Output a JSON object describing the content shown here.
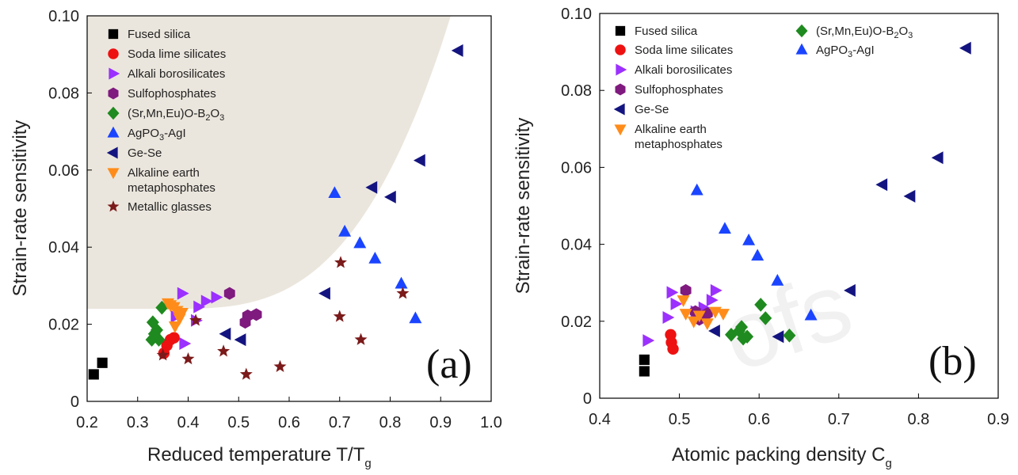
{
  "chart_data": [
    {
      "type": "scatter",
      "panel_label": "(a)",
      "xlabel": "Reduced temperature T/T",
      "xlabel_sub": "g",
      "ylabel": "Strain-rate sensitivity",
      "xlim": [
        0.2,
        1.0
      ],
      "ylim": [
        0,
        0.1
      ],
      "xticks": [
        0.2,
        0.3,
        0.4,
        0.5,
        0.6,
        0.7,
        0.8,
        0.9,
        1.0
      ],
      "yticks": [
        0,
        0.02,
        0.04,
        0.06,
        0.08,
        0.1
      ],
      "xtick_labels": [
        "0.2",
        "0.3",
        "0.4",
        "0.5",
        "0.6",
        "0.7",
        "0.8",
        "0.9",
        "1.0"
      ],
      "ytick_labels": [
        "0",
        "0.02",
        "0.04",
        "0.06",
        "0.08",
        "0.10"
      ],
      "grid": false,
      "shaded_region": true,
      "legend_position": "top-left",
      "series": [
        {
          "name": "Fused silica",
          "marker": "square",
          "color": "#000000",
          "points": [
            [
              0.213,
              0.007
            ],
            [
              0.23,
              0.01
            ]
          ]
        },
        {
          "name": "Soda lime silicates",
          "marker": "circle",
          "color": "#ee1111",
          "points": [
            [
              0.352,
              0.0125
            ],
            [
              0.358,
              0.0145
            ],
            [
              0.365,
              0.016
            ],
            [
              0.372,
              0.0165
            ]
          ]
        },
        {
          "name": "Alkali borosilicates",
          "marker": "triangle-right",
          "color": "#9b30ff",
          "points": [
            [
              0.375,
              0.022
            ],
            [
              0.388,
              0.028
            ],
            [
              0.392,
              0.015
            ],
            [
              0.415,
              0.021
            ],
            [
              0.42,
              0.0245
            ],
            [
              0.435,
              0.026
            ],
            [
              0.455,
              0.027
            ]
          ]
        },
        {
          "name": "Sulfophosphates",
          "marker": "hexagon",
          "color": "#7f1a7f",
          "points": [
            [
              0.482,
              0.028
            ],
            [
              0.513,
              0.0205
            ],
            [
              0.518,
              0.0222
            ],
            [
              0.535,
              0.0225
            ]
          ]
        },
        {
          "name": "(Sr,Mn,Eu)O-B₂O₃",
          "marker": "diamond",
          "color": "#1f8a1f",
          "points": [
            [
              0.328,
              0.016
            ],
            [
              0.333,
              0.0175
            ],
            [
              0.338,
              0.0185
            ],
            [
              0.33,
              0.0205
            ],
            [
              0.342,
              0.016
            ],
            [
              0.348,
              0.0243
            ]
          ]
        },
        {
          "name": "AgPO₃-AgI",
          "marker": "triangle-up",
          "color": "#1a44ff",
          "points": [
            [
              0.69,
              0.054
            ],
            [
              0.71,
              0.044
            ],
            [
              0.74,
              0.041
            ],
            [
              0.77,
              0.037
            ],
            [
              0.822,
              0.0305
            ],
            [
              0.85,
              0.0215
            ]
          ]
        },
        {
          "name": "Ge-Se",
          "marker": "triangle-left",
          "color": "#141480",
          "points": [
            [
              0.475,
              0.0175
            ],
            [
              0.505,
              0.016
            ],
            [
              0.672,
              0.028
            ],
            [
              0.765,
              0.0555
            ],
            [
              0.802,
              0.053
            ],
            [
              0.86,
              0.0625
            ],
            [
              0.935,
              0.091
            ]
          ]
        },
        {
          "name": "Alkaline earth metaphosphates",
          "name_lines": [
            "Alkaline earth",
            "metaphosphates"
          ],
          "marker": "triangle-down",
          "color": "#ff8c1a",
          "points": [
            [
              0.36,
              0.0255
            ],
            [
              0.365,
              0.025
            ],
            [
              0.372,
              0.0245
            ],
            [
              0.378,
              0.0235
            ],
            [
              0.383,
              0.0215
            ],
            [
              0.388,
              0.023
            ],
            [
              0.374,
              0.0195
            ]
          ]
        },
        {
          "name": "Metallic glasses",
          "marker": "star",
          "color": "#7b1a1a",
          "points": [
            [
              0.35,
              0.012
            ],
            [
              0.4,
              0.011
            ],
            [
              0.415,
              0.021
            ],
            [
              0.47,
              0.013
            ],
            [
              0.515,
              0.007
            ],
            [
              0.582,
              0.009
            ],
            [
              0.702,
              0.036
            ],
            [
              0.7,
              0.022
            ],
            [
              0.742,
              0.016
            ],
            [
              0.825,
              0.028
            ]
          ]
        }
      ]
    },
    {
      "type": "scatter",
      "panel_label": "(b)",
      "xlabel": "Atomic packing density C",
      "xlabel_sub": "g",
      "ylabel": "Strain-rate sensitivity",
      "xlim": [
        0.4,
        0.9
      ],
      "ylim": [
        0,
        0.1
      ],
      "xticks": [
        0.4,
        0.5,
        0.6,
        0.7,
        0.8,
        0.9
      ],
      "yticks": [
        0,
        0.02,
        0.04,
        0.06,
        0.08,
        0.1
      ],
      "xtick_labels": [
        "0.4",
        "0.5",
        "0.6",
        "0.7",
        "0.8",
        "0.9"
      ],
      "ytick_labels": [
        "0",
        "0.02",
        "0.04",
        "0.06",
        "0.08",
        "0.10"
      ],
      "grid": false,
      "legend_position": "top",
      "series": [
        {
          "name": "Fused silica",
          "marker": "square",
          "color": "#000000",
          "points": [
            [
              0.456,
              0.007
            ],
            [
              0.456,
              0.01
            ]
          ]
        },
        {
          "name": "Soda lime silicates",
          "marker": "circle",
          "color": "#ee1111",
          "points": [
            [
              0.489,
              0.0165
            ],
            [
              0.49,
              0.0145
            ],
            [
              0.492,
              0.0128
            ]
          ]
        },
        {
          "name": "Alkali borosilicates",
          "marker": "triangle-right",
          "color": "#9b30ff",
          "points": [
            [
              0.46,
              0.015
            ],
            [
              0.485,
              0.021
            ],
            [
              0.49,
              0.0275
            ],
            [
              0.495,
              0.0245
            ],
            [
              0.52,
              0.0225
            ],
            [
              0.53,
              0.0235
            ],
            [
              0.54,
              0.0255
            ],
            [
              0.545,
              0.028
            ]
          ]
        },
        {
          "name": "Sulfophosphates",
          "marker": "hexagon",
          "color": "#7f1a7f",
          "points": [
            [
              0.508,
              0.028
            ],
            [
              0.52,
              0.0225
            ],
            [
              0.525,
              0.0205
            ],
            [
              0.535,
              0.022
            ]
          ]
        },
        {
          "name": "Ge-Se",
          "marker": "triangle-left",
          "color": "#141480",
          "points": [
            [
              0.545,
              0.0175
            ],
            [
              0.625,
              0.016
            ],
            [
              0.715,
              0.028
            ],
            [
              0.755,
              0.0555
            ],
            [
              0.79,
              0.0525
            ],
            [
              0.825,
              0.0625
            ],
            [
              0.86,
              0.091
            ]
          ]
        },
        {
          "name": "Alkaline earth metaphosphates",
          "name_lines": [
            "Alkaline earth",
            "metaphosphates"
          ],
          "marker": "triangle-down",
          "color": "#ff8c1a",
          "points": [
            [
              0.505,
              0.0255
            ],
            [
              0.508,
              0.022
            ],
            [
              0.518,
              0.02
            ],
            [
              0.525,
              0.0215
            ],
            [
              0.535,
              0.0195
            ],
            [
              0.545,
              0.0225
            ],
            [
              0.555,
              0.022
            ]
          ]
        },
        {
          "name": "(Sr,Mn,Eu)O-B₂O₃",
          "marker": "diamond",
          "color": "#1f8a1f",
          "points": [
            [
              0.565,
              0.0165
            ],
            [
              0.575,
              0.0175
            ],
            [
              0.58,
              0.0155
            ],
            [
              0.585,
              0.016
            ],
            [
              0.578,
              0.0185
            ],
            [
              0.602,
              0.0243
            ],
            [
              0.608,
              0.0208
            ],
            [
              0.638,
              0.0163
            ]
          ]
        },
        {
          "name": "AgPO₃-AgI",
          "marker": "triangle-up",
          "color": "#1a44ff",
          "points": [
            [
              0.522,
              0.054
            ],
            [
              0.557,
              0.044
            ],
            [
              0.587,
              0.041
            ],
            [
              0.598,
              0.037
            ],
            [
              0.623,
              0.0305
            ],
            [
              0.665,
              0.0215
            ]
          ]
        }
      ]
    }
  ]
}
